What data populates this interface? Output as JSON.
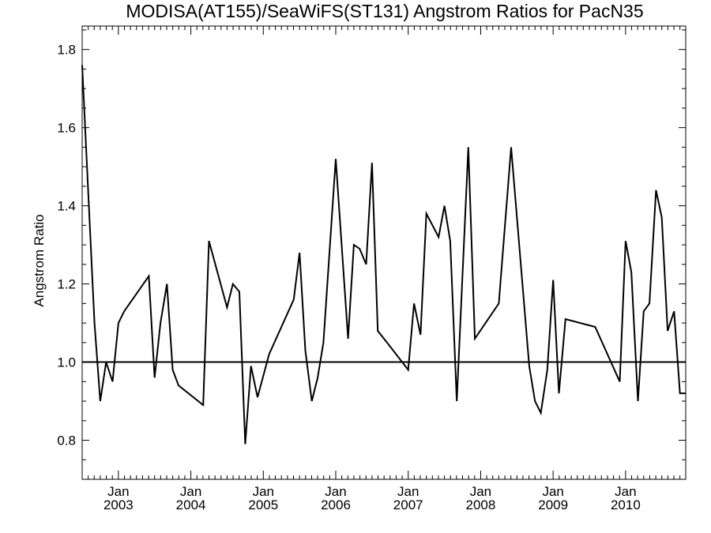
{
  "chart_data": {
    "type": "line",
    "title": "MODISA(AT155)/SeaWiFS(ST131)  Angstrom Ratios for PacN35",
    "xlabel": "",
    "ylabel": "Angstrom Ratio",
    "xlim": [
      2002.5,
      2010.83
    ],
    "ylim": [
      0.7,
      1.86
    ],
    "yticks": [
      0.8,
      1.0,
      1.2,
      1.4,
      1.6,
      1.8
    ],
    "ytick_labels": [
      "0.8",
      "1.0",
      "1.2",
      "1.4",
      "1.6",
      "1.8"
    ],
    "xticks": [
      {
        "x": 2003.0,
        "month": "Jan",
        "year": "2003"
      },
      {
        "x": 2004.0,
        "month": "Jan",
        "year": "2004"
      },
      {
        "x": 2005.0,
        "month": "Jan",
        "year": "2005"
      },
      {
        "x": 2006.0,
        "month": "Jan",
        "year": "2006"
      },
      {
        "x": 2007.0,
        "month": "Jan",
        "year": "2007"
      },
      {
        "x": 2008.0,
        "month": "Jan",
        "year": "2008"
      },
      {
        "x": 2009.0,
        "month": "Jan",
        "year": "2009"
      },
      {
        "x": 2010.0,
        "month": "Jan",
        "year": "2010"
      }
    ],
    "reference_line": 1.0,
    "grid": false,
    "series": [
      {
        "x": [
          2002.5,
          2002.67,
          2002.75,
          2002.83,
          2002.92,
          2003.0,
          2003.08,
          2003.42,
          2003.5,
          2003.58,
          2003.67,
          2003.75,
          2003.83,
          2004.17,
          2004.25,
          2004.5,
          2004.58,
          2004.67,
          2004.75,
          2004.83,
          2004.92,
          2005.08,
          2005.42,
          2005.5,
          2005.58,
          2005.67,
          2005.75,
          2005.83,
          2006.0,
          2006.17,
          2006.25,
          2006.33,
          2006.42,
          2006.5,
          2006.58,
          2006.75,
          2007.0,
          2007.08,
          2007.17,
          2007.25,
          2007.42,
          2007.5,
          2007.58,
          2007.67,
          2007.83,
          2007.92,
          2008.25,
          2008.42,
          2008.67,
          2008.75,
          2008.83,
          2008.92,
          2009.0,
          2009.08,
          2009.17,
          2009.58,
          2009.92,
          2010.0,
          2010.08,
          2010.17,
          2010.25,
          2010.33,
          2010.42,
          2010.5,
          2010.58,
          2010.67,
          2010.75,
          2010.83
        ],
        "values": [
          1.76,
          1.1,
          0.9,
          1.0,
          0.95,
          1.1,
          1.13,
          1.22,
          0.96,
          1.1,
          1.2,
          0.98,
          0.94,
          0.89,
          1.31,
          1.14,
          1.2,
          1.18,
          0.79,
          0.99,
          0.91,
          1.02,
          1.16,
          1.28,
          1.03,
          0.9,
          0.96,
          1.05,
          1.52,
          1.06,
          1.3,
          1.29,
          1.25,
          1.51,
          1.08,
          1.04,
          0.98,
          1.15,
          1.07,
          1.38,
          1.32,
          1.4,
          1.31,
          0.9,
          1.55,
          1.06,
          1.15,
          1.55,
          0.99,
          0.9,
          0.87,
          0.98,
          1.21,
          0.92,
          1.11,
          1.09,
          0.95,
          1.31,
          1.23,
          0.9,
          1.13,
          1.15,
          1.44,
          1.37,
          1.08,
          1.13,
          0.92,
          0.92
        ]
      }
    ]
  }
}
